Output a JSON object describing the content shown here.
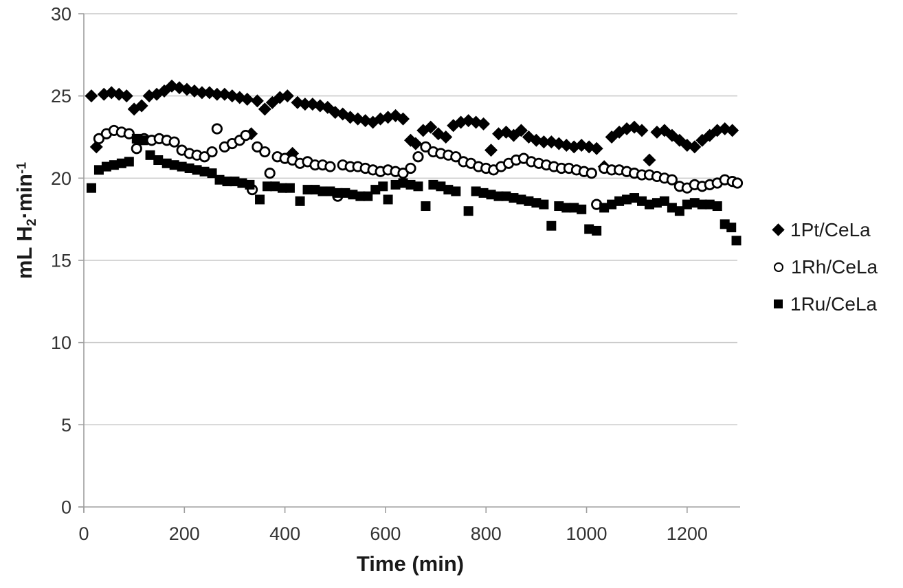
{
  "colors": {
    "marker": "#000000",
    "gridline": "#c9c9c9",
    "axis": "#9f9f9f",
    "tick_text": "#333333",
    "legend_text": "#1a1a1a",
    "background": "#ffffff"
  },
  "chart_data": {
    "type": "scatter",
    "title": "",
    "grid": "horizontal",
    "legend_position": "right",
    "x_axis": {
      "label": "Time (min)",
      "min": 0,
      "max": 1300,
      "tick_interval": 200,
      "ticks": [
        0,
        200,
        400,
        600,
        800,
        1000,
        1200
      ]
    },
    "y_axis": {
      "label_parts": {
        "prefix": "mL H",
        "sub": "2",
        "mid": "·min",
        "sup": "-1"
      },
      "min": 0,
      "max": 30,
      "tick_interval": 5,
      "ticks": [
        0,
        5,
        10,
        15,
        20,
        25,
        30
      ]
    },
    "series": [
      {
        "name": "1Pt/CeLa",
        "marker": "diamond",
        "color": "#000000",
        "points": [
          [
            15,
            25.0
          ],
          [
            25,
            21.9
          ],
          [
            40,
            25.1
          ],
          [
            55,
            25.2
          ],
          [
            70,
            25.1
          ],
          [
            85,
            25.0
          ],
          [
            100,
            24.2
          ],
          [
            115,
            24.4
          ],
          [
            130,
            25.0
          ],
          [
            145,
            25.1
          ],
          [
            160,
            25.3
          ],
          [
            175,
            25.6
          ],
          [
            190,
            25.5
          ],
          [
            205,
            25.4
          ],
          [
            220,
            25.3
          ],
          [
            235,
            25.2
          ],
          [
            250,
            25.2
          ],
          [
            265,
            25.1
          ],
          [
            280,
            25.1
          ],
          [
            295,
            25.0
          ],
          [
            310,
            24.9
          ],
          [
            325,
            24.8
          ],
          [
            333,
            22.7
          ],
          [
            345,
            24.7
          ],
          [
            360,
            24.2
          ],
          [
            375,
            24.6
          ],
          [
            390,
            24.9
          ],
          [
            405,
            25.0
          ],
          [
            415,
            21.5
          ],
          [
            425,
            24.6
          ],
          [
            440,
            24.5
          ],
          [
            455,
            24.5
          ],
          [
            470,
            24.4
          ],
          [
            485,
            24.3
          ],
          [
            500,
            24.0
          ],
          [
            515,
            23.9
          ],
          [
            530,
            23.7
          ],
          [
            545,
            23.6
          ],
          [
            560,
            23.5
          ],
          [
            575,
            23.4
          ],
          [
            590,
            23.6
          ],
          [
            605,
            23.7
          ],
          [
            620,
            23.8
          ],
          [
            635,
            23.6
          ],
          [
            650,
            22.3
          ],
          [
            660,
            22.1
          ],
          [
            675,
            22.9
          ],
          [
            690,
            23.1
          ],
          [
            705,
            22.7
          ],
          [
            720,
            22.5
          ],
          [
            735,
            23.2
          ],
          [
            750,
            23.4
          ],
          [
            765,
            23.5
          ],
          [
            780,
            23.4
          ],
          [
            795,
            23.3
          ],
          [
            810,
            21.7
          ],
          [
            825,
            22.7
          ],
          [
            840,
            22.8
          ],
          [
            855,
            22.6
          ],
          [
            870,
            22.9
          ],
          [
            885,
            22.5
          ],
          [
            900,
            22.3
          ],
          [
            915,
            22.2
          ],
          [
            930,
            22.2
          ],
          [
            945,
            22.1
          ],
          [
            960,
            22.0
          ],
          [
            975,
            21.9
          ],
          [
            990,
            22.0
          ],
          [
            1005,
            21.9
          ],
          [
            1020,
            21.8
          ],
          [
            1035,
            20.7
          ],
          [
            1050,
            22.5
          ],
          [
            1065,
            22.8
          ],
          [
            1080,
            23.0
          ],
          [
            1095,
            23.1
          ],
          [
            1110,
            22.9
          ],
          [
            1125,
            21.1
          ],
          [
            1140,
            22.8
          ],
          [
            1155,
            22.9
          ],
          [
            1170,
            22.6
          ],
          [
            1185,
            22.3
          ],
          [
            1200,
            22.0
          ],
          [
            1215,
            21.9
          ],
          [
            1230,
            22.3
          ],
          [
            1245,
            22.6
          ],
          [
            1260,
            22.9
          ],
          [
            1275,
            23.0
          ],
          [
            1290,
            22.9
          ]
        ]
      },
      {
        "name": "1Rh/CeLa",
        "marker": "circle-open",
        "color": "#000000",
        "points": [
          [
            30,
            22.4
          ],
          [
            45,
            22.7
          ],
          [
            60,
            22.9
          ],
          [
            75,
            22.8
          ],
          [
            90,
            22.7
          ],
          [
            105,
            21.8
          ],
          [
            120,
            22.4
          ],
          [
            135,
            22.3
          ],
          [
            150,
            22.4
          ],
          [
            165,
            22.3
          ],
          [
            180,
            22.2
          ],
          [
            195,
            21.7
          ],
          [
            210,
            21.5
          ],
          [
            225,
            21.4
          ],
          [
            240,
            21.3
          ],
          [
            255,
            21.6
          ],
          [
            265,
            23.0
          ],
          [
            280,
            21.9
          ],
          [
            295,
            22.1
          ],
          [
            310,
            22.3
          ],
          [
            322,
            22.6
          ],
          [
            335,
            19.3
          ],
          [
            345,
            21.9
          ],
          [
            360,
            21.6
          ],
          [
            370,
            20.3
          ],
          [
            385,
            21.3
          ],
          [
            400,
            21.2
          ],
          [
            415,
            21.1
          ],
          [
            430,
            20.9
          ],
          [
            445,
            21.0
          ],
          [
            460,
            20.8
          ],
          [
            475,
            20.8
          ],
          [
            490,
            20.7
          ],
          [
            505,
            18.9
          ],
          [
            515,
            20.8
          ],
          [
            530,
            20.7
          ],
          [
            545,
            20.7
          ],
          [
            560,
            20.6
          ],
          [
            575,
            20.5
          ],
          [
            590,
            20.4
          ],
          [
            605,
            20.5
          ],
          [
            620,
            20.4
          ],
          [
            635,
            20.3
          ],
          [
            650,
            20.6
          ],
          [
            665,
            21.3
          ],
          [
            680,
            21.9
          ],
          [
            695,
            21.6
          ],
          [
            710,
            21.5
          ],
          [
            725,
            21.4
          ],
          [
            740,
            21.3
          ],
          [
            755,
            21.0
          ],
          [
            770,
            20.9
          ],
          [
            785,
            20.7
          ],
          [
            800,
            20.6
          ],
          [
            815,
            20.5
          ],
          [
            830,
            20.7
          ],
          [
            845,
            20.9
          ],
          [
            860,
            21.1
          ],
          [
            875,
            21.2
          ],
          [
            890,
            21.0
          ],
          [
            905,
            20.9
          ],
          [
            920,
            20.8
          ],
          [
            935,
            20.7
          ],
          [
            950,
            20.6
          ],
          [
            965,
            20.6
          ],
          [
            980,
            20.5
          ],
          [
            995,
            20.4
          ],
          [
            1010,
            20.3
          ],
          [
            1020,
            18.4
          ],
          [
            1035,
            20.6
          ],
          [
            1050,
            20.5
          ],
          [
            1065,
            20.5
          ],
          [
            1080,
            20.4
          ],
          [
            1095,
            20.3
          ],
          [
            1110,
            20.2
          ],
          [
            1125,
            20.2
          ],
          [
            1140,
            20.1
          ],
          [
            1155,
            20.0
          ],
          [
            1170,
            19.9
          ],
          [
            1185,
            19.5
          ],
          [
            1200,
            19.4
          ],
          [
            1215,
            19.6
          ],
          [
            1230,
            19.5
          ],
          [
            1245,
            19.6
          ],
          [
            1260,
            19.7
          ],
          [
            1275,
            19.9
          ],
          [
            1290,
            19.8
          ],
          [
            1300,
            19.7
          ]
        ]
      },
      {
        "name": "1Ru/CeLa",
        "marker": "square",
        "color": "#000000",
        "points": [
          [
            15,
            19.4
          ],
          [
            30,
            20.5
          ],
          [
            45,
            20.7
          ],
          [
            60,
            20.8
          ],
          [
            75,
            20.9
          ],
          [
            90,
            21.0
          ],
          [
            105,
            22.4
          ],
          [
            118,
            22.3
          ],
          [
            132,
            21.4
          ],
          [
            148,
            21.1
          ],
          [
            165,
            20.9
          ],
          [
            180,
            20.8
          ],
          [
            195,
            20.7
          ],
          [
            210,
            20.6
          ],
          [
            225,
            20.5
          ],
          [
            240,
            20.4
          ],
          [
            255,
            20.3
          ],
          [
            270,
            19.9
          ],
          [
            285,
            19.8
          ],
          [
            300,
            19.8
          ],
          [
            315,
            19.7
          ],
          [
            330,
            19.6
          ],
          [
            350,
            18.7
          ],
          [
            365,
            19.5
          ],
          [
            380,
            19.5
          ],
          [
            395,
            19.4
          ],
          [
            410,
            19.4
          ],
          [
            430,
            18.6
          ],
          [
            445,
            19.3
          ],
          [
            460,
            19.3
          ],
          [
            475,
            19.2
          ],
          [
            490,
            19.2
          ],
          [
            505,
            19.1
          ],
          [
            520,
            19.1
          ],
          [
            535,
            19.0
          ],
          [
            550,
            18.9
          ],
          [
            565,
            18.9
          ],
          [
            580,
            19.3
          ],
          [
            595,
            19.5
          ],
          [
            605,
            18.7
          ],
          [
            620,
            19.6
          ],
          [
            635,
            19.7
          ],
          [
            650,
            19.6
          ],
          [
            665,
            19.5
          ],
          [
            680,
            18.3
          ],
          [
            695,
            19.6
          ],
          [
            710,
            19.5
          ],
          [
            725,
            19.3
          ],
          [
            740,
            19.2
          ],
          [
            765,
            18.0
          ],
          [
            780,
            19.2
          ],
          [
            795,
            19.1
          ],
          [
            810,
            19.0
          ],
          [
            825,
            18.9
          ],
          [
            840,
            18.9
          ],
          [
            855,
            18.8
          ],
          [
            870,
            18.7
          ],
          [
            885,
            18.6
          ],
          [
            900,
            18.5
          ],
          [
            915,
            18.4
          ],
          [
            930,
            17.1
          ],
          [
            945,
            18.3
          ],
          [
            960,
            18.2
          ],
          [
            975,
            18.2
          ],
          [
            990,
            18.1
          ],
          [
            1005,
            16.9
          ],
          [
            1020,
            16.8
          ],
          [
            1035,
            18.2
          ],
          [
            1050,
            18.4
          ],
          [
            1065,
            18.6
          ],
          [
            1080,
            18.7
          ],
          [
            1095,
            18.8
          ],
          [
            1110,
            18.6
          ],
          [
            1125,
            18.4
          ],
          [
            1140,
            18.5
          ],
          [
            1155,
            18.6
          ],
          [
            1170,
            18.2
          ],
          [
            1185,
            18.0
          ],
          [
            1200,
            18.4
          ],
          [
            1215,
            18.5
          ],
          [
            1230,
            18.4
          ],
          [
            1245,
            18.4
          ],
          [
            1260,
            18.3
          ],
          [
            1275,
            17.2
          ],
          [
            1288,
            17.0
          ],
          [
            1298,
            16.2
          ]
        ]
      }
    ]
  }
}
